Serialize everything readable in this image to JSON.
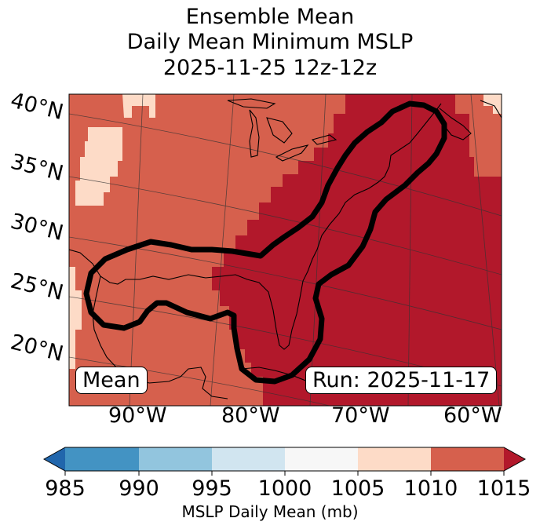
{
  "title": {
    "line1": "Ensemble Mean",
    "line2": "Daily Mean Minimum MSLP",
    "line3": "2025-11-25 12z-12z"
  },
  "map": {
    "lat_labels": [
      "40°N",
      "35°N",
      "30°N",
      "25°N",
      "20°N"
    ],
    "lon_labels": [
      "90°W",
      "80°W",
      "70°W",
      "60°W"
    ],
    "mean_label": "Mean",
    "run_label": "Run: 2025-11-17",
    "colors": {
      "1005-1010": "#fddbc7",
      "1010-1015": "#d6604d",
      "above-1015": "#b2182b",
      "contour": "#000000",
      "coast": "#000000"
    }
  },
  "colorbar": {
    "ticks": [
      "985",
      "990",
      "995",
      "1000",
      "1005",
      "1010",
      "1015"
    ],
    "colors": [
      "#2166ac",
      "#4393c3",
      "#92c5de",
      "#d1e5f0",
      "#f7f7f7",
      "#fddbc7",
      "#d6604d",
      "#b2182b"
    ],
    "title": "MSLP Daily Mean (mb)"
  }
}
